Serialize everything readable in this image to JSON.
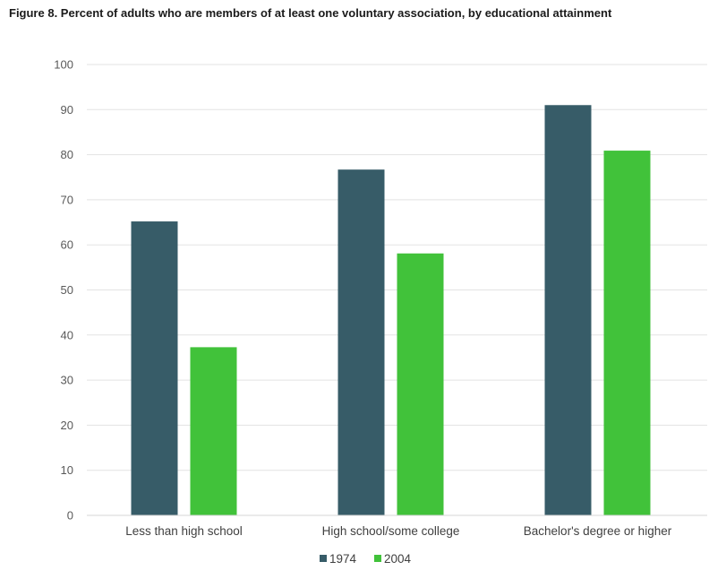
{
  "chart_data": {
    "type": "bar",
    "title": "Figure 8. Percent of adults who are members of at least one voluntary association, by educational attainment",
    "xlabel": "",
    "ylabel": "",
    "ylim": [
      0,
      100
    ],
    "yticks": [
      "0",
      "10",
      "20",
      "30",
      "40",
      "50",
      "60",
      "70",
      "80",
      "90",
      "100"
    ],
    "categories": [
      "Less than high school",
      "High school/some college",
      "Bachelor's degree or higher"
    ],
    "series": [
      {
        "name": "1974",
        "color": "#375c68",
        "values": [
          65.2,
          76.7,
          91.0
        ]
      },
      {
        "name": "2004",
        "color": "#41c23a",
        "values": [
          37.3,
          58.1,
          80.9
        ]
      }
    ],
    "legend_position": "bottom",
    "grid": true
  }
}
